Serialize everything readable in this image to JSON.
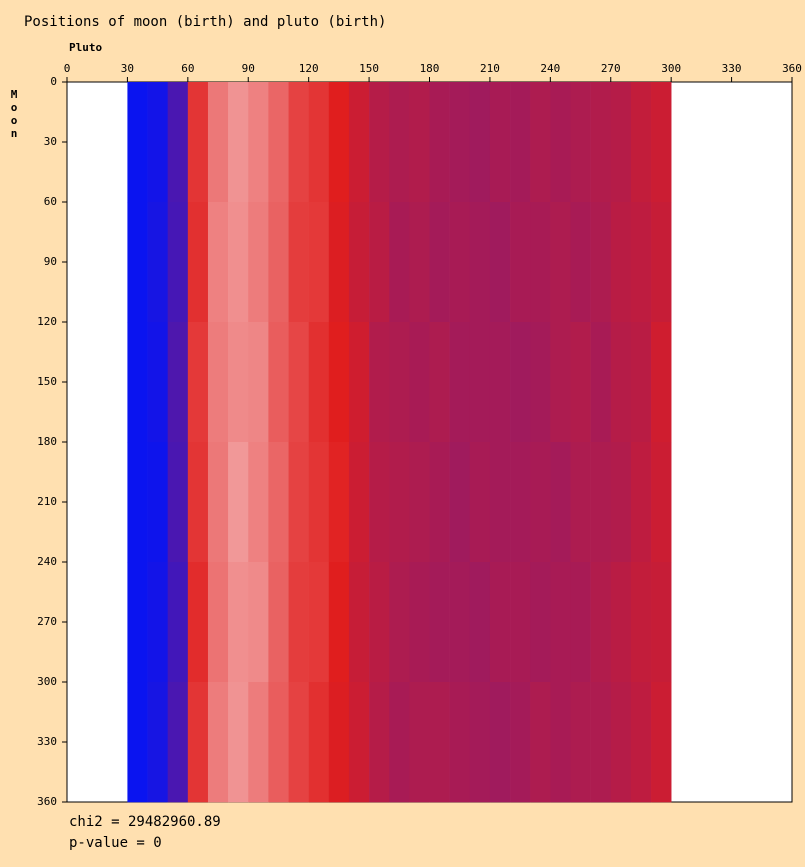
{
  "chart_data": {
    "type": "heatmap",
    "title": "Positions of moon (birth) and pluto (birth)",
    "x_label": "Pluto",
    "y_label": "Moon",
    "xlim": [
      0,
      360
    ],
    "ylim": [
      0,
      360
    ],
    "xticks": [
      0,
      30,
      60,
      90,
      120,
      150,
      180,
      210,
      240,
      270,
      300,
      330,
      360
    ],
    "yticks": [
      0,
      30,
      60,
      90,
      120,
      150,
      180,
      210,
      240,
      270,
      300,
      330,
      360
    ],
    "xbins": [
      0,
      10,
      20,
      30,
      40,
      50,
      60,
      70,
      80,
      90,
      100,
      110,
      120,
      130,
      140,
      150,
      160,
      170,
      180,
      190,
      200,
      210,
      220,
      230,
      240,
      250,
      260,
      270,
      280,
      290,
      300,
      310,
      320,
      330,
      340,
      350,
      360
    ],
    "ybins": [
      0,
      60,
      120,
      180,
      240,
      300,
      360
    ],
    "colors": [
      "#0a14f0",
      "#e01e1e",
      "#ffffff"
    ],
    "z": [
      [
        null,
        null,
        null,
        0,
        0.02,
        0.15,
        0.55,
        0.7,
        0.76,
        0.72,
        0.66,
        0.58,
        0.55,
        0.5,
        0.45,
        0.4,
        0.38,
        0.39,
        0.37,
        0.36,
        0.35,
        0.37,
        0.36,
        0.38,
        0.37,
        0.38,
        0.39,
        0.4,
        0.43,
        0.45,
        null,
        null,
        null,
        null,
        null,
        null
      ],
      [
        null,
        null,
        null,
        0,
        0.03,
        0.14,
        0.54,
        0.72,
        0.75,
        0.71,
        0.65,
        0.57,
        0.56,
        0.49,
        0.44,
        0.41,
        0.37,
        0.38,
        0.36,
        0.37,
        0.36,
        0.35,
        0.37,
        0.37,
        0.38,
        0.37,
        0.38,
        0.41,
        0.42,
        0.44,
        null,
        null,
        null,
        null,
        null,
        null
      ],
      [
        null,
        null,
        null,
        0,
        0.02,
        0.16,
        0.56,
        0.71,
        0.74,
        0.73,
        0.64,
        0.59,
        0.54,
        0.5,
        0.46,
        0.39,
        0.38,
        0.37,
        0.38,
        0.36,
        0.36,
        0.36,
        0.35,
        0.36,
        0.38,
        0.39,
        0.37,
        0.4,
        0.41,
        0.46,
        null,
        null,
        null,
        null,
        null,
        null
      ],
      [
        null,
        null,
        null,
        0,
        0.01,
        0.15,
        0.55,
        0.7,
        0.77,
        0.72,
        0.66,
        0.58,
        0.55,
        0.51,
        0.45,
        0.4,
        0.39,
        0.38,
        0.37,
        0.35,
        0.37,
        0.36,
        0.36,
        0.37,
        0.36,
        0.38,
        0.38,
        0.39,
        0.42,
        0.45,
        null,
        null,
        null,
        null,
        null,
        null
      ],
      [
        null,
        null,
        null,
        0,
        0.02,
        0.13,
        0.53,
        0.69,
        0.75,
        0.74,
        0.65,
        0.57,
        0.56,
        0.5,
        0.44,
        0.41,
        0.38,
        0.37,
        0.36,
        0.36,
        0.35,
        0.37,
        0.37,
        0.36,
        0.37,
        0.37,
        0.39,
        0.41,
        0.43,
        0.44,
        null,
        null,
        null,
        null,
        null,
        null
      ],
      [
        null,
        null,
        null,
        0,
        0.03,
        0.15,
        0.55,
        0.71,
        0.76,
        0.71,
        0.64,
        0.58,
        0.54,
        0.49,
        0.45,
        0.4,
        0.37,
        0.38,
        0.38,
        0.37,
        0.36,
        0.35,
        0.36,
        0.38,
        0.37,
        0.38,
        0.38,
        0.4,
        0.42,
        0.45,
        null,
        null,
        null,
        null,
        null,
        null
      ]
    ],
    "annotations": [
      "chi2 = 29482960.89",
      "p-value = 0"
    ]
  }
}
